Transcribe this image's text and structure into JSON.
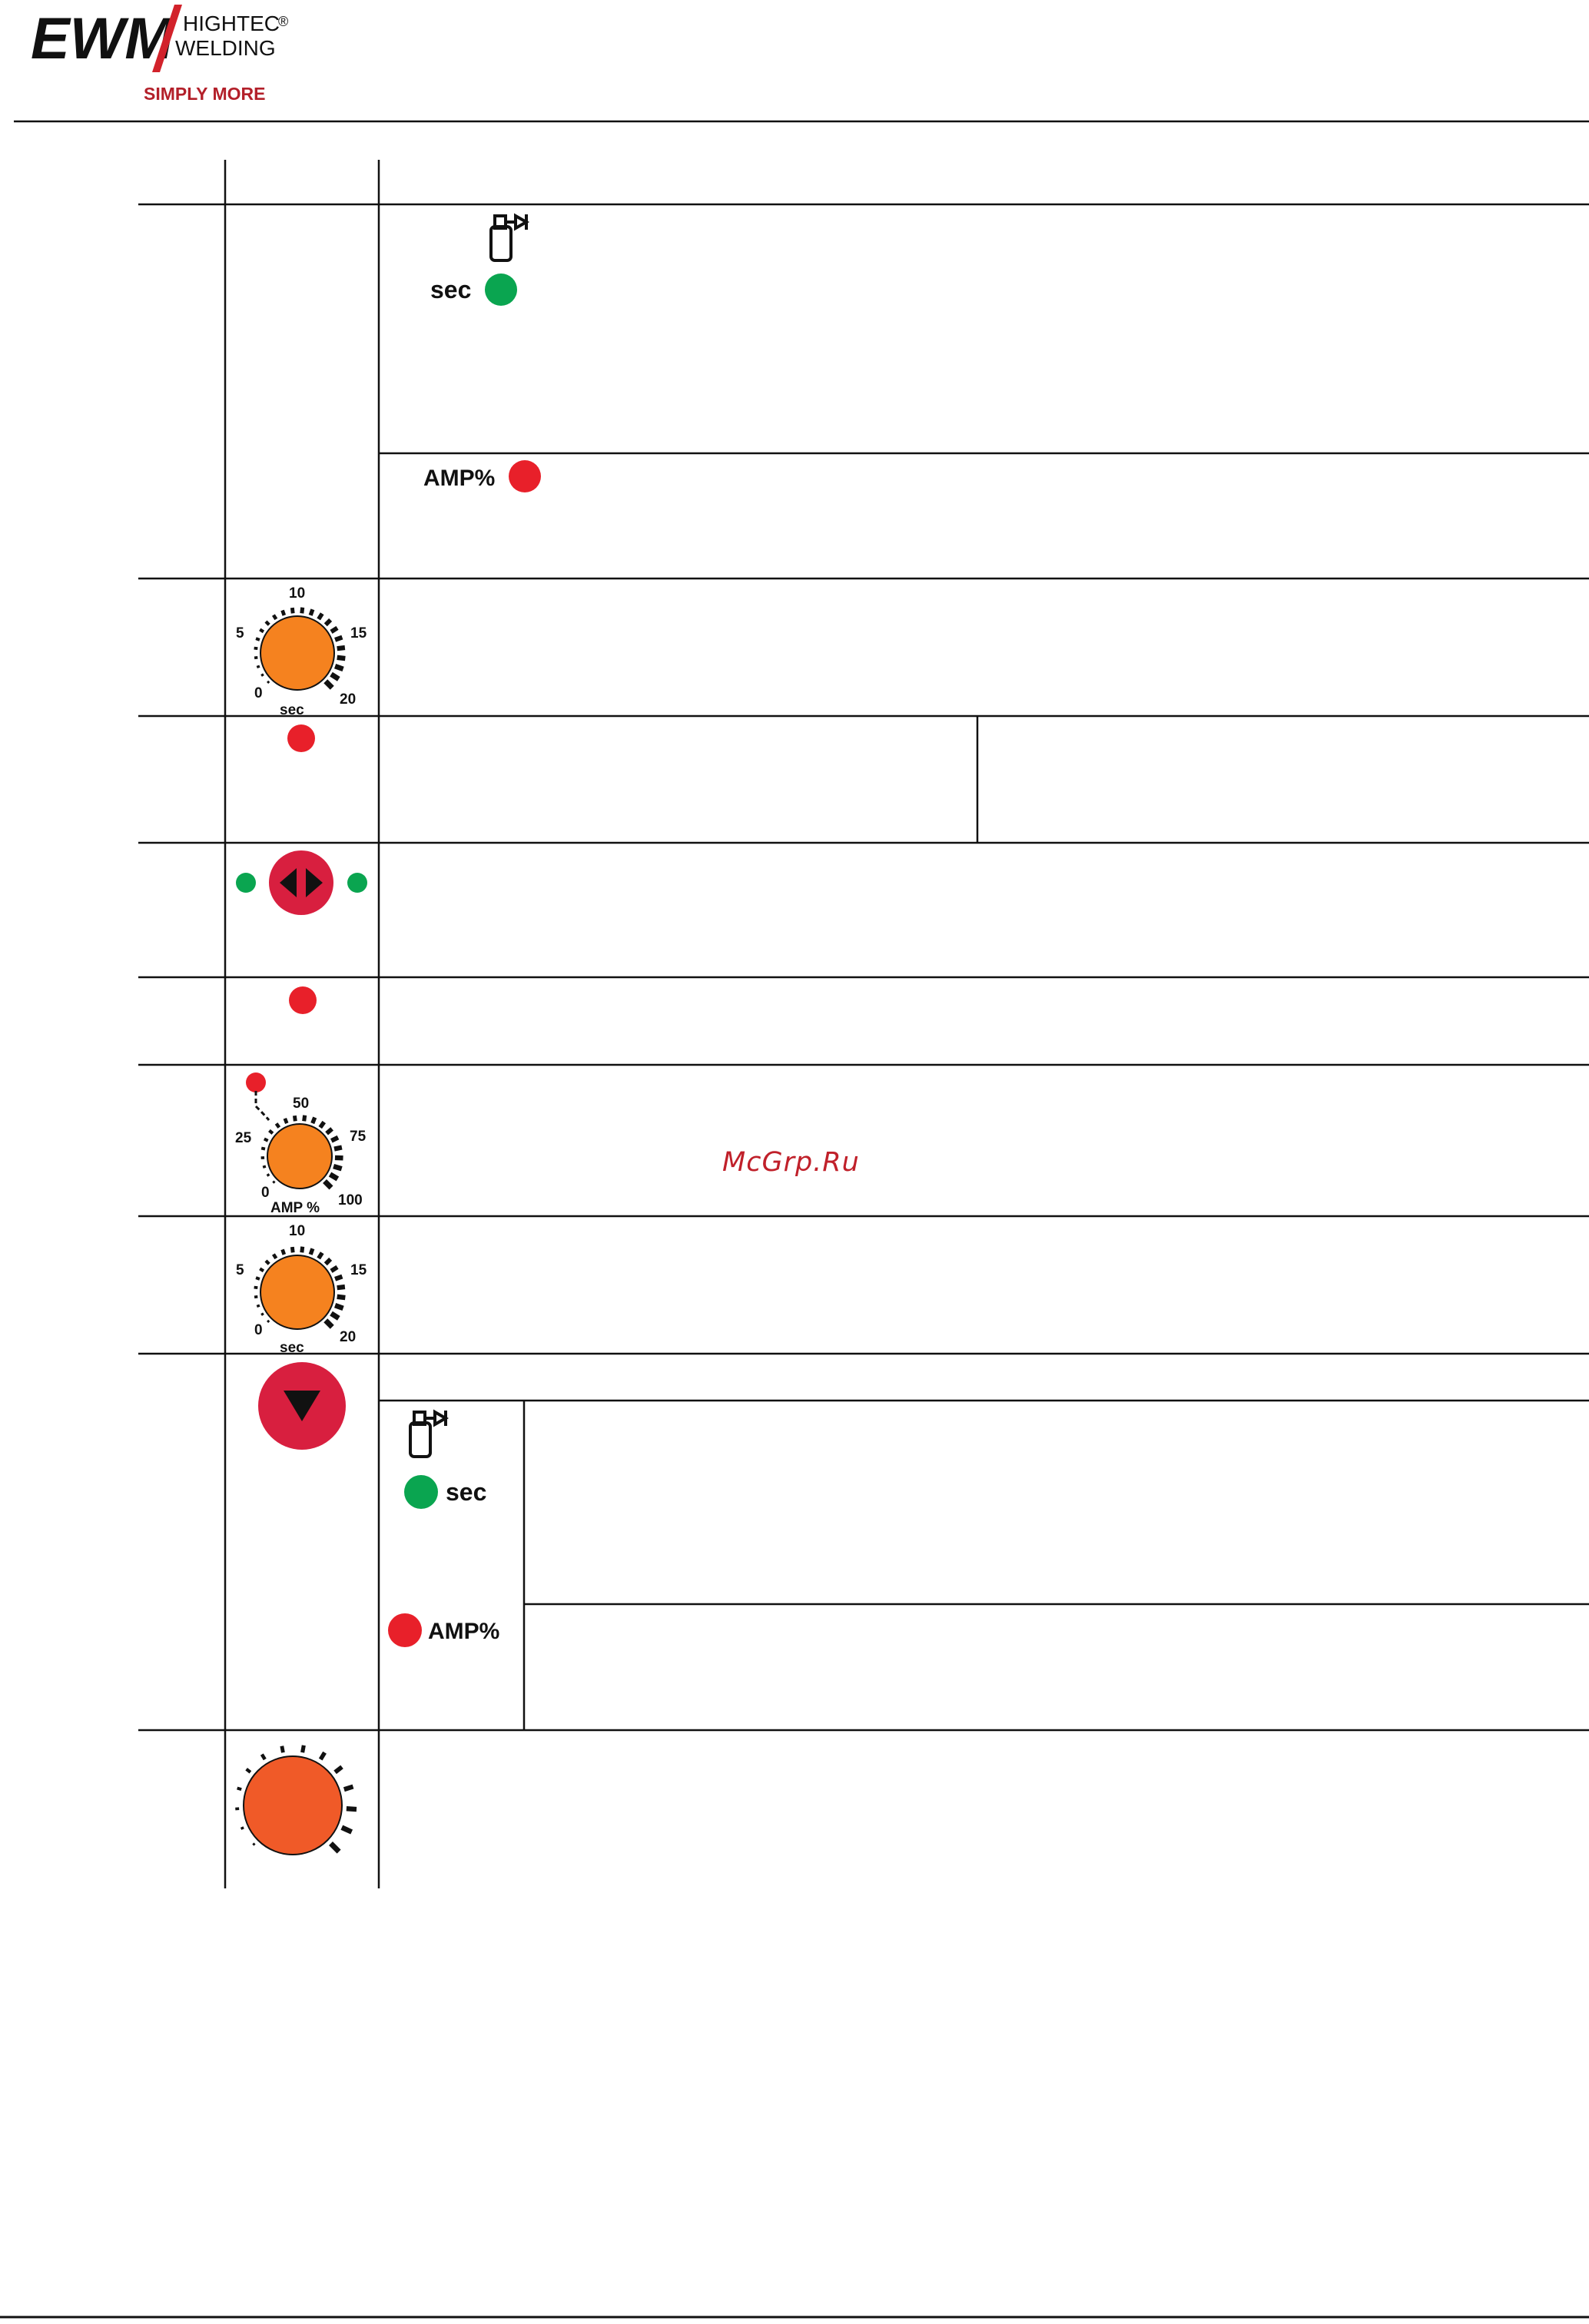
{
  "header": {
    "logo": {
      "brand": "EWM",
      "line1": "HIGHTEC",
      "registered": "®",
      "line2": "WELDING",
      "tagline": "SIMPLY MORE"
    }
  },
  "rows": {
    "gas_prepurge": {
      "sec_label": "sec",
      "amp_label": "AMP%",
      "icon": "gas-cylinder-icon"
    },
    "dial_time_1": {
      "ticks": [
        "0",
        "5",
        "10",
        "15",
        "20"
      ],
      "unit": "sec"
    },
    "dial_amp": {
      "ticks": [
        "0",
        "25",
        "50",
        "75",
        "100"
      ],
      "unit": "AMP %"
    },
    "dial_time_2": {
      "ticks": [
        "0",
        "5",
        "10",
        "15",
        "20"
      ],
      "unit": "sec"
    },
    "gas_postflow": {
      "sec_label": "sec",
      "amp_label": "AMP%",
      "icon": "gas-cylinder-icon"
    }
  },
  "watermark": "McGrp.Ru",
  "colors": {
    "green": "#0aa550",
    "red": "#e8202a",
    "knob": "#f5821f",
    "button": "#d81f3f",
    "main_knob": "#f05a28"
  }
}
